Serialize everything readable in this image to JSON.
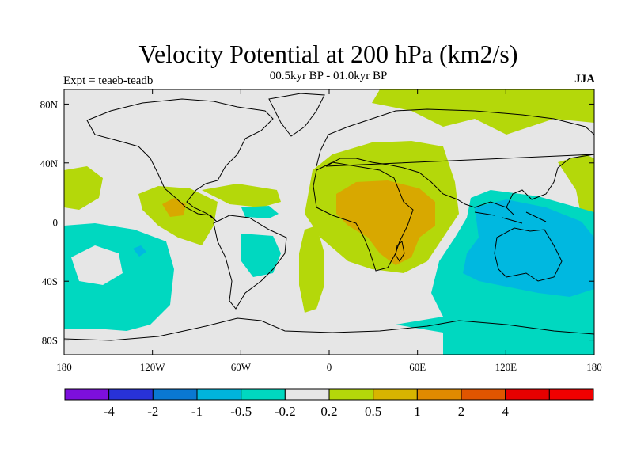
{
  "title": "Velocity Potential at 200 hPa (km2/s)",
  "subtitle": "00.5kyr BP - 01.0kyr BP",
  "left_label": "Expt = teaeb-teadb",
  "right_label": "JJA",
  "axes": {
    "x_ticks": [
      "180",
      "120W",
      "60W",
      "0",
      "60E",
      "120E",
      "180"
    ],
    "y_ticks": [
      "80N",
      "40N",
      "0",
      "40S",
      "80S"
    ]
  },
  "colorbar": {
    "colors": [
      "#7d0fdd",
      "#2832d8",
      "#0a78d2",
      "#00b4dc",
      "#00d8c0",
      "#e6e6e6",
      "#b4d80a",
      "#d8b400",
      "#e08a00",
      "#e05500",
      "#e60000",
      "#f00000"
    ],
    "labels": [
      "-4",
      "-2",
      "-1",
      "-0.5",
      "-0.2",
      "0.2",
      "0.5",
      "1",
      "2",
      "4"
    ]
  },
  "map_colors": {
    "background": "#e6e6e6",
    "pos1": "#b4d80a",
    "pos2": "#d8a800",
    "neg1": "#00d8c0",
    "neg2": "#00b8e0",
    "coast": "#000000"
  }
}
